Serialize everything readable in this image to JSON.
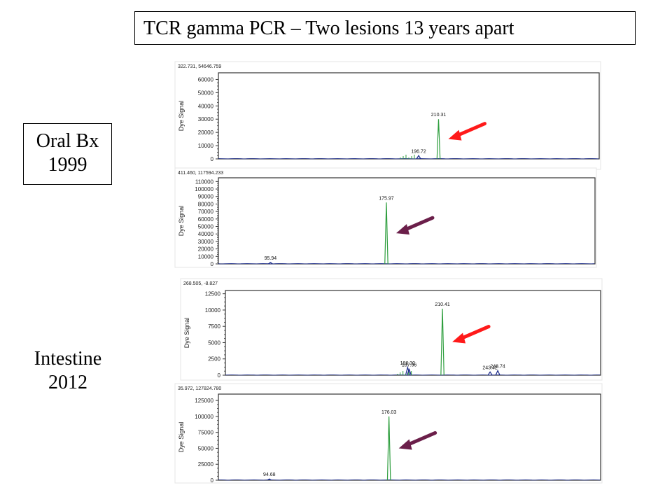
{
  "title": "TCR gamma PCR – Two lesions 13 years apart",
  "labels": {
    "oral": {
      "line1": "Oral Bx",
      "line2": "1999"
    },
    "intestine": {
      "line1": "Intestine",
      "line2": "2012"
    }
  },
  "colors": {
    "red_arrow": "#ff1a1a",
    "purple_arrow": "#6b1f4a",
    "green_trace": "#2e9e3e",
    "blue_trace": "#1a2a8a"
  },
  "chart_data": [
    {
      "type": "line",
      "header": "322.731, 54646.759",
      "ylabel": "Dye Signal",
      "ylim": [
        0,
        65000
      ],
      "yticks": [
        0,
        10000,
        20000,
        30000,
        40000,
        50000,
        60000
      ],
      "xlim": [
        60,
        320
      ],
      "peaks": [
        {
          "x": 210.31,
          "y": 30000,
          "label": "210.31",
          "series": "green"
        },
        {
          "x": 196.72,
          "y": 2500,
          "label": "196.72",
          "series": "blue"
        }
      ],
      "arrow": "red"
    },
    {
      "type": "line",
      "header": "411.460, 117594.233",
      "ylabel": "Dye Signal",
      "ylim": [
        0,
        115000
      ],
      "yticks": [
        0,
        10000,
        20000,
        30000,
        40000,
        50000,
        60000,
        70000,
        80000,
        90000,
        100000,
        110000
      ],
      "xlim": [
        60,
        320
      ],
      "peaks": [
        {
          "x": 175.97,
          "y": 82000,
          "label": "175.97",
          "series": "green"
        },
        {
          "x": 95.94,
          "y": 2000,
          "label": "95.94",
          "series": "blue"
        }
      ],
      "arrow": "purple"
    },
    {
      "type": "line",
      "header": "268.505, -8.827",
      "ylabel": "Dye Signal",
      "ylim": [
        0,
        13000
      ],
      "yticks": [
        0,
        2500,
        5000,
        7500,
        10000,
        12500
      ],
      "xlim": [
        60,
        320
      ],
      "peaks": [
        {
          "x": 210.41,
          "y": 10200,
          "label": "210.41",
          "series": "green"
        },
        {
          "x": 186.3,
          "y": 1200,
          "label": "186.30",
          "series": "blue"
        },
        {
          "x": 187.36,
          "y": 900,
          "label": "187.36",
          "series": "blue"
        },
        {
          "x": 248.74,
          "y": 700,
          "label": "248.74",
          "series": "blue"
        },
        {
          "x": 243.42,
          "y": 500,
          "label": "243.42",
          "series": "blue"
        }
      ],
      "arrow": "red"
    },
    {
      "type": "line",
      "header": "35.972, 127824.780",
      "ylabel": "Dye Signal",
      "ylim": [
        0,
        135000
      ],
      "yticks": [
        0,
        25000,
        50000,
        75000,
        100000,
        125000
      ],
      "xlim": [
        60,
        320
      ],
      "peaks": [
        {
          "x": 176.03,
          "y": 100000,
          "label": "176.03",
          "series": "green"
        },
        {
          "x": 94.68,
          "y": 2000,
          "label": "94.68",
          "series": "blue"
        }
      ],
      "arrow": "purple"
    }
  ]
}
